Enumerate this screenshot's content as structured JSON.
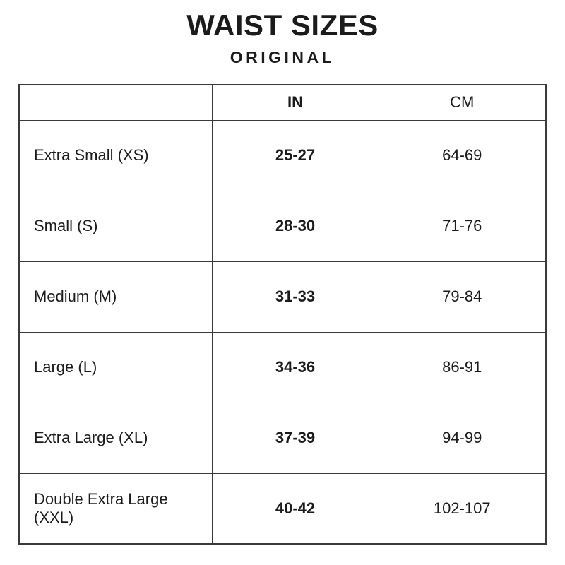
{
  "page": {
    "title": "WAIST SIZES",
    "subtitle": "ORIGINAL",
    "text_color": "#1b1b1b",
    "border_color": "#3a3a3a",
    "background_color": "#ffffff"
  },
  "chart_data": {
    "type": "table",
    "title": "WAIST SIZES",
    "subtitle": "ORIGINAL",
    "columns": [
      "",
      "IN",
      "CM"
    ],
    "rows": [
      [
        "Extra Small (XS)",
        "25-27",
        "64-69"
      ],
      [
        "Small (S)",
        "28-30",
        "71-76"
      ],
      [
        "Medium (M)",
        "31-33",
        "79-84"
      ],
      [
        "Large (L)",
        "34-36",
        "86-91"
      ],
      [
        "Extra Large (XL)",
        "37-39",
        "94-99"
      ],
      [
        "Double Extra Large (XXL)",
        "40-42",
        "102-107"
      ]
    ]
  }
}
